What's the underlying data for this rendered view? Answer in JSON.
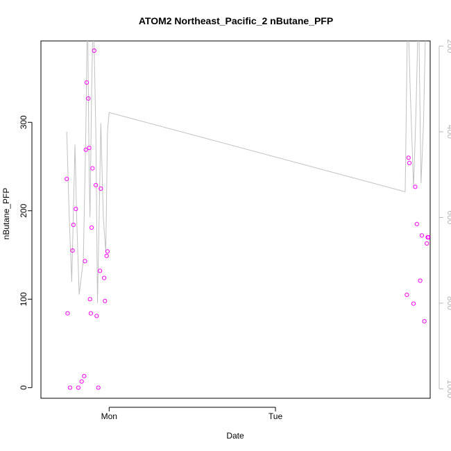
{
  "chart_data": {
    "type": "scatter",
    "title": "ATOM2 Northeast_Pacific_2 nButane_PFP",
    "xlabel": "Date",
    "ylabel": "nButane_PFP",
    "x_unit": "hours since Sunday 00:00",
    "xlim": [
      -8.2,
      38.6
    ],
    "ylim": [
      -12,
      392
    ],
    "x_ticks": [
      {
        "value": 0,
        "label": "Mon"
      },
      {
        "value": 20,
        "label": "Tue"
      }
    ],
    "y_ticks": [
      0,
      100,
      200,
      300
    ],
    "right_axis": {
      "label": "",
      "ticks": [
        200,
        400,
        600,
        800,
        1000
      ],
      "color": "#b8b8b8",
      "range_top": 188,
      "range_bottom": 1022,
      "reversed": true
    },
    "grid": false,
    "legend": "none",
    "point_color": "#ff00ff",
    "line_color": "#c0c0c0",
    "series": [
      {
        "values": [
          [
            -5.1,
            236
          ],
          [
            -5.0,
            84
          ],
          [
            -4.7,
            0
          ],
          [
            -4.4,
            155
          ],
          [
            -4.3,
            184
          ],
          [
            -4.0,
            202
          ],
          [
            -3.7,
            0
          ],
          [
            -3.3,
            7
          ],
          [
            -3.0,
            13
          ],
          [
            -2.9,
            143
          ],
          [
            -2.8,
            269
          ],
          [
            -2.7,
            345
          ],
          [
            -2.5,
            327
          ],
          [
            -2.4,
            271
          ],
          [
            -2.3,
            100
          ],
          [
            -2.2,
            84
          ],
          [
            -2.1,
            181
          ],
          [
            -2.0,
            248
          ],
          [
            -1.8,
            381
          ],
          [
            -1.6,
            229
          ],
          [
            -1.5,
            81
          ],
          [
            -1.3,
            0
          ],
          [
            -1.1,
            132
          ],
          [
            -1.0,
            225
          ],
          [
            -0.6,
            124
          ],
          [
            -0.5,
            98
          ],
          [
            -0.3,
            149
          ],
          [
            -0.2,
            154
          ],
          [
            35.8,
            105
          ],
          [
            36.0,
            260
          ],
          [
            36.1,
            254
          ],
          [
            36.6,
            95
          ],
          [
            36.8,
            227
          ],
          [
            37.0,
            185
          ],
          [
            37.4,
            121
          ],
          [
            37.6,
            172
          ],
          [
            37.9,
            75
          ],
          [
            38.2,
            163
          ],
          [
            38.3,
            170
          ],
          [
            38.4,
            170
          ]
        ]
      },
      {
        "axis": "right",
        "values": [
          [
            -5.1,
            400
          ],
          [
            -4.8,
            600
          ],
          [
            -4.5,
            750
          ],
          [
            -4.1,
            430
          ],
          [
            -3.9,
            600
          ],
          [
            -3.6,
            780
          ],
          [
            -3.1,
            700
          ],
          [
            -2.8,
            400
          ],
          [
            -2.6,
            100
          ],
          [
            -2.4,
            500
          ],
          [
            -2.3,
            600
          ],
          [
            -2.1,
            300
          ],
          [
            -1.9,
            100
          ],
          [
            -1.6,
            400
          ],
          [
            -1.4,
            800
          ],
          [
            -1.2,
            600
          ],
          [
            -1.0,
            380
          ],
          [
            -0.7,
            600
          ],
          [
            -0.4,
            680
          ],
          [
            -0.2,
            400
          ],
          [
            0.0,
            355
          ],
          [
            35.6,
            540
          ],
          [
            35.9,
            100
          ],
          [
            36.2,
            300
          ],
          [
            36.6,
            530
          ],
          [
            36.9,
            350
          ],
          [
            37.2,
            100
          ],
          [
            37.5,
            520
          ],
          [
            37.8,
            380
          ],
          [
            38.1,
            100
          ],
          [
            38.4,
            100
          ]
        ]
      }
    ]
  }
}
